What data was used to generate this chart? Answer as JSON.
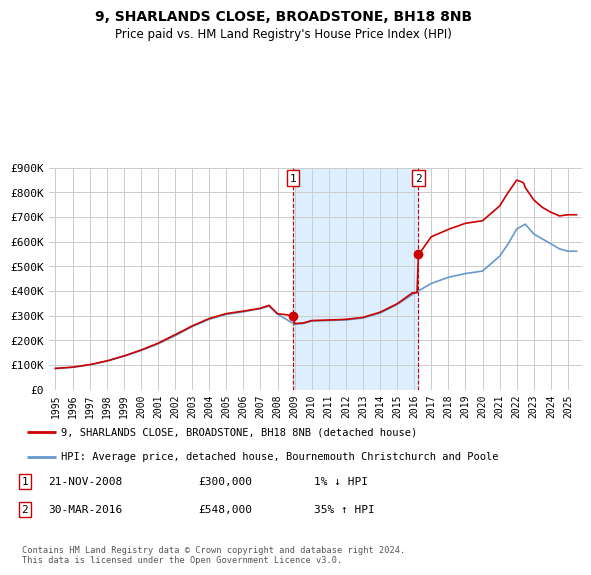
{
  "title": "9, SHARLANDS CLOSE, BROADSTONE, BH18 8NB",
  "subtitle": "Price paid vs. HM Land Registry's House Price Index (HPI)",
  "property_label": "9, SHARLANDS CLOSE, BROADSTONE, BH18 8NB (detached house)",
  "hpi_label": "HPI: Average price, detached house, Bournemouth Christchurch and Poole",
  "transaction1_date": "21-NOV-2008",
  "transaction1_price": "£300,000",
  "transaction1_hpi": "1% ↓ HPI",
  "transaction2_date": "30-MAR-2016",
  "transaction2_price": "£548,000",
  "transaction2_hpi": "35% ↑ HPI",
  "footer": "Contains HM Land Registry data © Crown copyright and database right 2024.\nThis data is licensed under the Open Government Licence v3.0.",
  "ylim": [
    0,
    900000
  ],
  "yticks": [
    0,
    100000,
    200000,
    300000,
    400000,
    500000,
    600000,
    700000,
    800000,
    900000
  ],
  "ytick_labels": [
    "£0",
    "£100K",
    "£200K",
    "£300K",
    "£400K",
    "£500K",
    "£600K",
    "£700K",
    "£800K",
    "£900K"
  ],
  "property_color": "#cc0000",
  "hpi_color": "#6699cc",
  "highlight_bg": "#ddeeff",
  "transaction1_x": 2008.9,
  "transaction2_x": 2016.25,
  "grid_color": "#cccccc",
  "background_color": "#ffffff",
  "xlim_left": 1994.6,
  "xlim_right": 2025.8,
  "xtick_years": [
    1995,
    1996,
    1997,
    1998,
    1999,
    2000,
    2001,
    2002,
    2003,
    2004,
    2005,
    2006,
    2007,
    2008,
    2009,
    2010,
    2011,
    2012,
    2013,
    2014,
    2015,
    2016,
    2017,
    2018,
    2019,
    2020,
    2021,
    2022,
    2023,
    2024,
    2025
  ]
}
